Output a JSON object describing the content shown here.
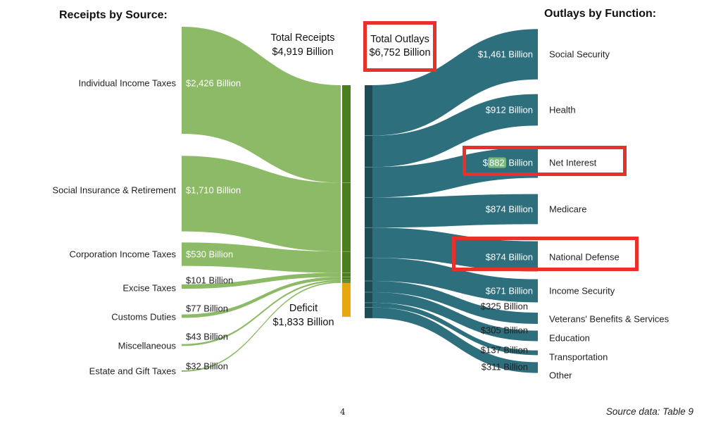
{
  "left_header": "Receipts by Source:",
  "right_header": "Outlays by Function:",
  "totals": {
    "receipts_line1": "Total Receipts",
    "receipts_line2": "$4,919 Billion",
    "outlays_line1": "Total Outlays",
    "outlays_line2": "$6,752 Billion",
    "deficit_line1": "Deficit",
    "deficit_line2": "$1,833 Billion"
  },
  "page": {
    "number": "4",
    "source_note": "Source data: Table 9"
  },
  "colors": {
    "flow_green": "#8CBA66",
    "node_green": "#4C7D1E",
    "deficit_gold": "#E7A70F",
    "flow_teal": "#2E6F7E",
    "node_teal": "#1E4B55",
    "annotation_red": "#E8312A",
    "value_highlight_green": "#79B87E"
  },
  "chart_data": {
    "type": "sankey",
    "title": "Federal Receipts by Source and Outlays by Function",
    "units": "Billions of dollars",
    "total_receipts_billion": 4919,
    "total_outlays_billion": 6752,
    "deficit_billion": 1833,
    "receipts_by_source": [
      {
        "label": "Individual Income Taxes",
        "value": 2426,
        "value_label": "$2,426 Billion"
      },
      {
        "label": "Social Insurance & Retirement",
        "value": 1710,
        "value_label": "$1,710 Billion"
      },
      {
        "label": "Corporation Income Taxes",
        "value": 530,
        "value_label": "$530 Billion"
      },
      {
        "label": "Excise Taxes",
        "value": 101,
        "value_label": "$101 Billion"
      },
      {
        "label": "Customs Duties",
        "value": 77,
        "value_label": "$77 Billion"
      },
      {
        "label": "Miscellaneous",
        "value": 43,
        "value_label": "$43 Billion"
      },
      {
        "label": "Estate and Gift Taxes",
        "value": 32,
        "value_label": "$32 Billion"
      }
    ],
    "outlays_by_function": [
      {
        "label": "Social Security",
        "value": 1461,
        "value_label": "$1,461 Billion"
      },
      {
        "label": "Health",
        "value": 912,
        "value_label": "$912 Billion"
      },
      {
        "label": "Net Interest",
        "value": 882,
        "value_label": "$882 Billion",
        "highlight": "882",
        "boxed": true
      },
      {
        "label": "Medicare",
        "value": 874,
        "value_label": "$874 Billion"
      },
      {
        "label": "National Defense",
        "value": 874,
        "value_label": "$874 Billion",
        "boxed": true
      },
      {
        "label": "Income Security",
        "value": 671,
        "value_label": "$671 Billion"
      },
      {
        "label": "Veterans' Benefits & Services",
        "value": 325,
        "value_label": "$325 Billion"
      },
      {
        "label": "Education",
        "value": 305,
        "value_label": "$305 Billion"
      },
      {
        "label": "Transportation",
        "value": 137,
        "value_label": "$137 Billion"
      },
      {
        "label": "Other",
        "value": 311,
        "value_label": "$311 Billion"
      }
    ],
    "annotations": [
      "red box around Total Outlays value",
      "red box around Net Interest row",
      "red box around National Defense row",
      "green highlight on the digits 882"
    ],
    "legend_position": "none",
    "grid": false
  }
}
